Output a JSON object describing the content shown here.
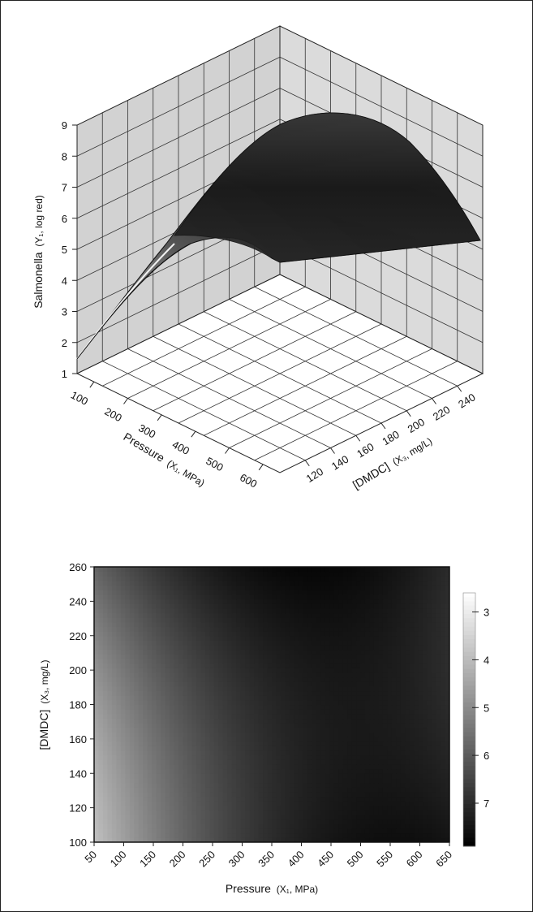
{
  "chart_data": [
    {
      "type": "surface",
      "zlabel_main": "Salmonella",
      "zlabel_sub": "(Y₁, log red)",
      "xlabel_main": "Pressure",
      "xlabel_sub": "(X₁, MPa)",
      "ylabel_main": "[DMDC]",
      "ylabel_sub": "(X₃, mg/L)",
      "x_ticks": [
        "100",
        "200",
        "300",
        "400",
        "500",
        "600"
      ],
      "y_ticks": [
        "120",
        "140",
        "160",
        "180",
        "200",
        "220",
        "240"
      ],
      "z_ticks": [
        "1",
        "2",
        "3",
        "4",
        "5",
        "6",
        "7",
        "8",
        "9"
      ],
      "xlim": [
        50,
        650
      ],
      "ylim": [
        100,
        260
      ],
      "zlim": [
        1,
        9
      ],
      "surface_corners": [
        {
          "x": 50,
          "y": 100,
          "z": 1.4
        },
        {
          "x": 50,
          "y": 260,
          "z": 5.3
        },
        {
          "x": 650,
          "y": 100,
          "z": 4.6
        },
        {
          "x": 650,
          "y": 260,
          "z": 5.3
        }
      ],
      "surface_peak": {
        "x": 450,
        "y": 250,
        "z": 9.3
      },
      "grid": true,
      "colorscale": "gray"
    },
    {
      "type": "heatmap",
      "xlabel_main": "Pressure",
      "xlabel_sub": "(X₁, MPa)",
      "ylabel_main": "[DMDC]",
      "ylabel_sub": "(X₃, mg/L)",
      "x_ticks": [
        "50",
        "100",
        "150",
        "200",
        "250",
        "300",
        "350",
        "400",
        "450",
        "500",
        "550",
        "600",
        "650"
      ],
      "y_ticks": [
        "100",
        "120",
        "140",
        "160",
        "180",
        "200",
        "220",
        "240",
        "260"
      ],
      "xlim": [
        50,
        650
      ],
      "ylim": [
        100,
        260
      ],
      "colorbar_ticks": [
        "3",
        "4",
        "5",
        "6",
        "7"
      ],
      "colorbar_range": [
        2.6,
        7.9
      ],
      "value_range": [
        2.6,
        7.8
      ],
      "colorscale": "gray"
    }
  ]
}
